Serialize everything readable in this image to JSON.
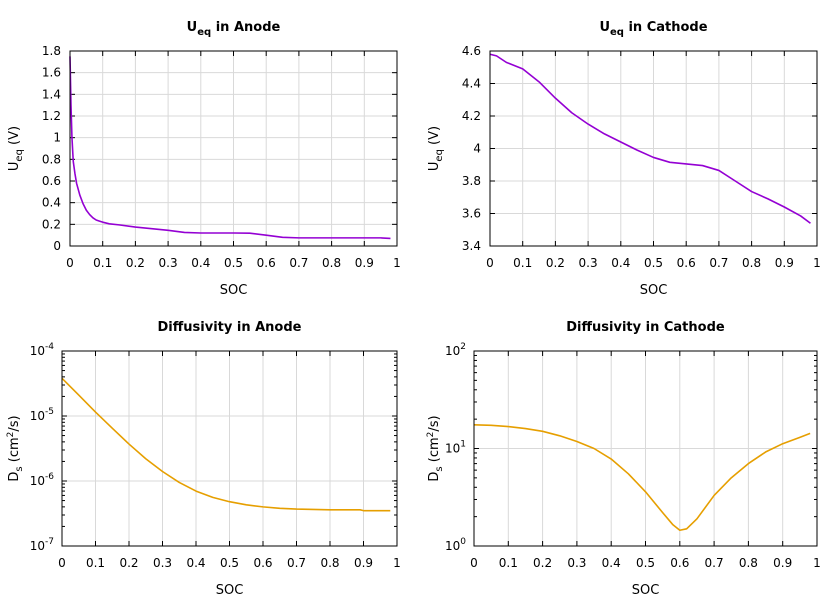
{
  "charts": {
    "anode_ueq": {
      "type": "line",
      "title": "U",
      "title_sub": "eq",
      "title_rest": " in Anode",
      "xlabel": "SOC",
      "ylabel": "U",
      "ylabel_sub": "eq",
      "ylabel_rest": " (V)",
      "xlim": [
        0,
        1
      ],
      "ylim": [
        0,
        1.8
      ],
      "yscale": "linear",
      "xticks": [
        0,
        0.1,
        0.2,
        0.3,
        0.4,
        0.5,
        0.6,
        0.7,
        0.8,
        0.9,
        1
      ],
      "xtick_labels": [
        "0",
        "0.1",
        "0.2",
        "0.3",
        "0.4",
        "0.5",
        "0.6",
        "0.7",
        "0.8",
        "0.9",
        "1"
      ],
      "yticks": [
        0,
        0.2,
        0.4,
        0.6,
        0.8,
        1,
        1.2,
        1.4,
        1.6,
        1.8
      ],
      "ytick_labels": [
        "0",
        "0.2",
        "0.4",
        "0.6",
        "0.8",
        "1",
        "1.2",
        "1.4",
        "1.6",
        "1.8"
      ],
      "grid": true,
      "color": "#9400d3",
      "x": [
        0,
        0.003,
        0.006,
        0.01,
        0.015,
        0.02,
        0.03,
        0.04,
        0.05,
        0.06,
        0.07,
        0.08,
        0.09,
        0.1,
        0.12,
        0.15,
        0.2,
        0.25,
        0.3,
        0.35,
        0.4,
        0.5,
        0.55,
        0.6,
        0.65,
        0.7,
        0.75,
        0.8,
        0.85,
        0.9,
        0.95,
        0.98
      ],
      "y": [
        1.75,
        1.3,
        1.0,
        0.78,
        0.67,
        0.58,
        0.47,
        0.39,
        0.33,
        0.29,
        0.26,
        0.24,
        0.23,
        0.22,
        0.205,
        0.195,
        0.175,
        0.16,
        0.145,
        0.125,
        0.12,
        0.12,
        0.118,
        0.1,
        0.08,
        0.075,
        0.075,
        0.075,
        0.075,
        0.075,
        0.075,
        0.07
      ]
    },
    "cathode_ueq": {
      "type": "line",
      "title": "U",
      "title_sub": "eq",
      "title_rest": " in Cathode",
      "xlabel": "SOC",
      "ylabel": "U",
      "ylabel_sub": "eq",
      "ylabel_rest": " (V)",
      "xlim": [
        0,
        1
      ],
      "ylim": [
        3.4,
        4.6
      ],
      "yscale": "linear",
      "xticks": [
        0,
        0.1,
        0.2,
        0.3,
        0.4,
        0.5,
        0.6,
        0.7,
        0.8,
        0.9,
        1
      ],
      "xtick_labels": [
        "0",
        "0.1",
        "0.2",
        "0.3",
        "0.4",
        "0.5",
        "0.6",
        "0.7",
        "0.8",
        "0.9",
        "1"
      ],
      "yticks": [
        3.4,
        3.6,
        3.8,
        4,
        4.2,
        4.4,
        4.6
      ],
      "ytick_labels": [
        "3.4",
        "3.6",
        "3.8",
        "4",
        "4.2",
        "4.4",
        "4.6"
      ],
      "grid": true,
      "color": "#9400d3",
      "x": [
        0,
        0.02,
        0.05,
        0.1,
        0.15,
        0.2,
        0.25,
        0.3,
        0.35,
        0.4,
        0.45,
        0.5,
        0.55,
        0.6,
        0.65,
        0.7,
        0.75,
        0.8,
        0.85,
        0.9,
        0.95,
        0.98
      ],
      "y": [
        4.58,
        4.57,
        4.53,
        4.49,
        4.41,
        4.31,
        4.22,
        4.15,
        4.09,
        4.04,
        3.99,
        3.945,
        3.915,
        3.905,
        3.895,
        3.865,
        3.8,
        3.735,
        3.69,
        3.64,
        3.585,
        3.54
      ]
    },
    "anode_diff": {
      "type": "line",
      "title": "Diffusivity in Anode",
      "xlabel": "SOC",
      "ylabel": "D",
      "ylabel_sub": "s",
      "ylabel_rest": " (cm",
      "ylabel_sup": "2",
      "ylabel_tail": "/s)",
      "xlim": [
        0,
        1
      ],
      "ylim": [
        1e-07,
        0.0001
      ],
      "yscale": "log",
      "xticks": [
        0,
        0.1,
        0.2,
        0.3,
        0.4,
        0.5,
        0.6,
        0.7,
        0.8,
        0.9,
        1
      ],
      "xtick_labels": [
        "0",
        "0.1",
        "0.2",
        "0.3",
        "0.4",
        "0.5",
        "0.6",
        "0.7",
        "0.8",
        "0.9",
        "1"
      ],
      "yticks": [
        1e-07,
        1e-06,
        1e-05,
        0.0001
      ],
      "ytick_base": [
        "10",
        "10",
        "10",
        "10"
      ],
      "ytick_exp": [
        "-7",
        "-6",
        "-5",
        "-4"
      ],
      "grid": true,
      "color": "#e69f00",
      "x": [
        0,
        0.05,
        0.1,
        0.15,
        0.2,
        0.25,
        0.3,
        0.35,
        0.4,
        0.45,
        0.5,
        0.55,
        0.6,
        0.65,
        0.7,
        0.75,
        0.8,
        0.85,
        0.89,
        0.9,
        0.95,
        0.98
      ],
      "y": [
        3.8e-05,
        2.1e-05,
        1.15e-05,
        6.5e-06,
        3.7e-06,
        2.2e-06,
        1.4e-06,
        9.5e-07,
        7e-07,
        5.6e-07,
        4.8e-07,
        4.3e-07,
        4e-07,
        3.8e-07,
        3.7e-07,
        3.65e-07,
        3.6e-07,
        3.6e-07,
        3.6e-07,
        3.5e-07,
        3.5e-07,
        3.5e-07
      ]
    },
    "cathode_diff": {
      "type": "line",
      "title": "Diffusivity in Cathode",
      "xlabel": "SOC",
      "ylabel": "D",
      "ylabel_sub": "s",
      "ylabel_rest": " (cm",
      "ylabel_sup": "2",
      "ylabel_tail": "/s)",
      "xlim": [
        0,
        1
      ],
      "ylim": [
        1,
        100
      ],
      "yscale": "log",
      "xticks": [
        0,
        0.1,
        0.2,
        0.3,
        0.4,
        0.5,
        0.6,
        0.7,
        0.8,
        0.9,
        1
      ],
      "xtick_labels": [
        "0",
        "0.1",
        "0.2",
        "0.3",
        "0.4",
        "0.5",
        "0.6",
        "0.7",
        "0.8",
        "0.9",
        "1"
      ],
      "yticks": [
        1,
        10,
        100
      ],
      "ytick_base": [
        "10",
        "10",
        "10"
      ],
      "ytick_exp": [
        "0",
        "1",
        "2"
      ],
      "grid": true,
      "color": "#e69f00",
      "x": [
        0,
        0.05,
        0.1,
        0.15,
        0.2,
        0.25,
        0.3,
        0.35,
        0.4,
        0.45,
        0.5,
        0.55,
        0.58,
        0.6,
        0.62,
        0.65,
        0.7,
        0.75,
        0.8,
        0.85,
        0.9,
        0.95,
        0.98
      ],
      "y": [
        17.5,
        17.3,
        16.8,
        16.0,
        15.0,
        13.5,
        11.8,
        10.0,
        7.8,
        5.5,
        3.6,
        2.2,
        1.65,
        1.45,
        1.5,
        1.9,
        3.3,
        5.0,
        7.0,
        9.2,
        11.2,
        13.0,
        14.3
      ]
    }
  }
}
